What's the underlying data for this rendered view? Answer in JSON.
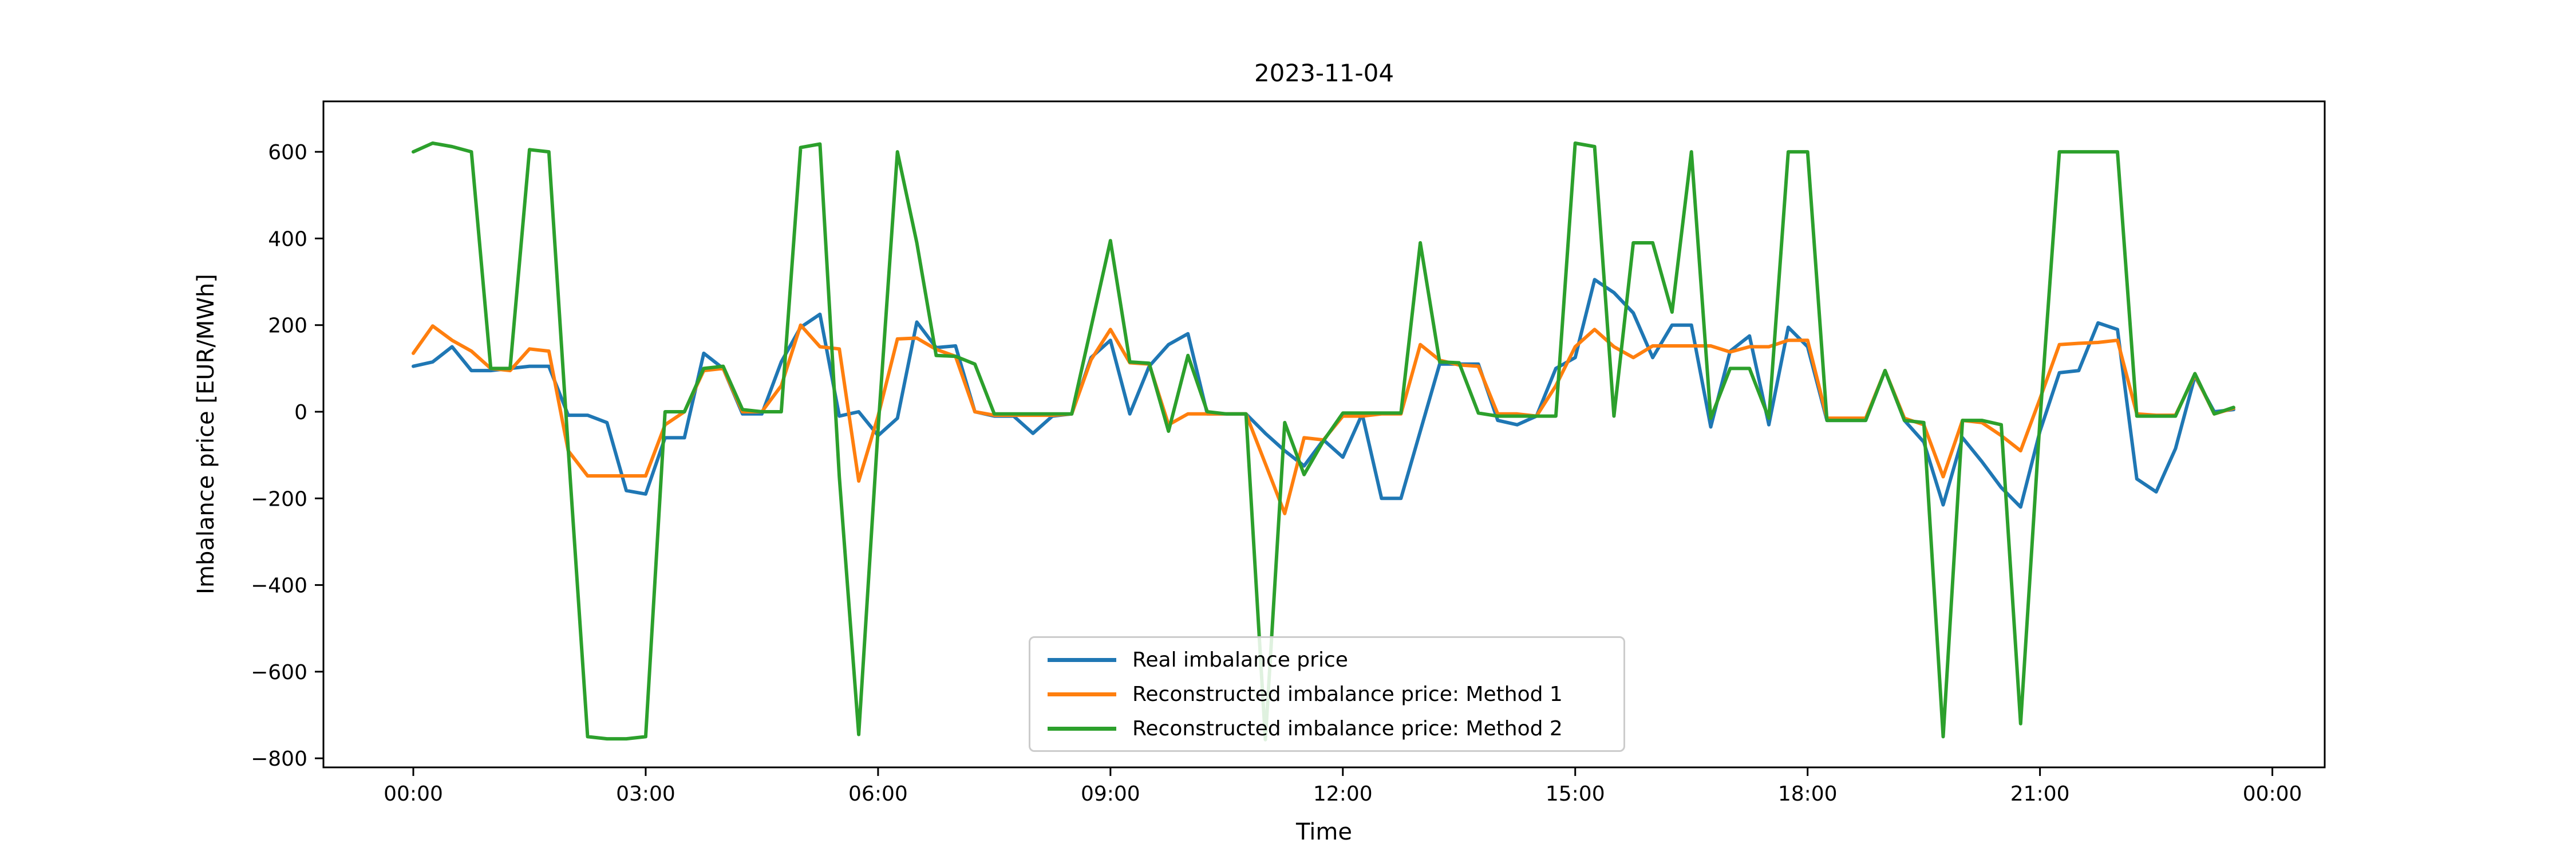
{
  "title": "2023-11-04",
  "xlabel": "Time",
  "ylabel": "Imbalance price [EUR/MWh]",
  "colors": {
    "blue": "#1f77b4",
    "orange": "#ff7f0e",
    "green": "#2ca02c",
    "spine": "#000000"
  },
  "legend": {
    "entries": [
      {
        "label": "Real imbalance price",
        "color": "blue"
      },
      {
        "label": "Reconstructed imbalance price: Method 1",
        "color": "orange"
      },
      {
        "label": "Reconstructed imbalance price: Method 2",
        "color": "green"
      }
    ]
  },
  "chart_data": {
    "type": "line",
    "title": "2023-11-04",
    "xlabel": "Time",
    "ylabel": "Imbalance price [EUR/MWh]",
    "x_unit": "15-minute interval index starting 00:00",
    "n_points": 95,
    "x_interval_minutes": 15,
    "ylim": [
      -821,
      716
    ],
    "xlim_units": [
      -4.65,
      98.7
    ],
    "grid": false,
    "legend_position": "lower center inside axes",
    "yticks": [
      {
        "v": 600,
        "label": "600"
      },
      {
        "v": 400,
        "label": "400"
      },
      {
        "v": 200,
        "label": "200"
      },
      {
        "v": 0,
        "label": "0"
      },
      {
        "v": -200,
        "label": "−200"
      },
      {
        "v": -400,
        "label": "−400"
      },
      {
        "v": -600,
        "label": "−600"
      },
      {
        "v": -800,
        "label": "−800"
      }
    ],
    "xticks": [
      {
        "i": 0,
        "label": "00:00"
      },
      {
        "i": 12,
        "label": "03:00"
      },
      {
        "i": 24,
        "label": "06:00"
      },
      {
        "i": 36,
        "label": "09:00"
      },
      {
        "i": 48,
        "label": "12:00"
      },
      {
        "i": 60,
        "label": "15:00"
      },
      {
        "i": 72,
        "label": "18:00"
      },
      {
        "i": 84,
        "label": "21:00"
      },
      {
        "i": 96,
        "label": "00:00"
      }
    ],
    "series": [
      {
        "name": "Real imbalance price",
        "color": "blue",
        "values": [
          105,
          115,
          150,
          95,
          95,
          100,
          105,
          105,
          -8,
          -8,
          -25,
          -182,
          -190,
          -60,
          -60,
          135,
          100,
          -5,
          -5,
          115,
          195,
          225,
          -10,
          0,
          -55,
          -15,
          207,
          148,
          152,
          0,
          -10,
          -10,
          -50,
          -10,
          -5,
          125,
          165,
          -5,
          105,
          155,
          180,
          -5,
          -5,
          -5,
          -50,
          -90,
          -125,
          -65,
          -105,
          -5,
          -200,
          -200,
          -45,
          110,
          110,
          110,
          -20,
          -30,
          -10,
          100,
          125,
          305,
          275,
          228,
          125,
          200,
          200,
          -35,
          140,
          175,
          -30,
          195,
          150,
          -20,
          -20,
          -20,
          95,
          -20,
          -70,
          -215,
          -60,
          -115,
          -175,
          -220,
          -45,
          90,
          95,
          205,
          190,
          -155,
          -185,
          -85,
          82,
          0,
          5
        ]
      },
      {
        "name": "Reconstructed imbalance price: Method 1",
        "color": "orange",
        "values": [
          135,
          198,
          165,
          140,
          100,
          95,
          145,
          140,
          -90,
          -148,
          -148,
          -148,
          -148,
          -30,
          0,
          95,
          100,
          0,
          0,
          60,
          200,
          150,
          145,
          -160,
          -10,
          168,
          170,
          144,
          128,
          0,
          -8,
          -8,
          -8,
          -8,
          -5,
          120,
          190,
          113,
          110,
          -30,
          -5,
          -5,
          -5,
          -5,
          -120,
          -235,
          -60,
          -65,
          -10,
          -10,
          -5,
          -5,
          155,
          119,
          108,
          105,
          -5,
          -5,
          -10,
          60,
          150,
          190,
          150,
          125,
          152,
          152,
          152,
          152,
          138,
          150,
          150,
          165,
          165,
          -15,
          -15,
          -15,
          95,
          -15,
          -30,
          -150,
          -20,
          -25,
          -55,
          -90,
          30,
          155,
          158,
          160,
          165,
          -5,
          -8,
          -8,
          85,
          -5,
          8
        ]
      },
      {
        "name": "Reconstructed imbalance price: Method 2",
        "color": "green",
        "values": [
          600,
          620,
          612,
          600,
          100,
          100,
          605,
          600,
          -85,
          -750,
          -755,
          -755,
          -750,
          0,
          0,
          100,
          105,
          5,
          0,
          0,
          610,
          618,
          -150,
          -745,
          -40,
          600,
          390,
          130,
          128,
          110,
          -5,
          -5,
          -5,
          -5,
          -5,
          195,
          395,
          115,
          112,
          -45,
          130,
          0,
          -5,
          -5,
          -757,
          -25,
          -145,
          -67,
          -3,
          -3,
          -3,
          -3,
          390,
          115,
          113,
          -3,
          -10,
          -10,
          -10,
          -10,
          620,
          612,
          -10,
          390,
          390,
          230,
          600,
          -15,
          100,
          100,
          -15,
          600,
          600,
          -20,
          -20,
          -20,
          95,
          -20,
          -25,
          -750,
          -20,
          -20,
          -30,
          -720,
          -20,
          600,
          600,
          600,
          600,
          -10,
          -10,
          -10,
          88,
          -5,
          10
        ]
      }
    ]
  }
}
